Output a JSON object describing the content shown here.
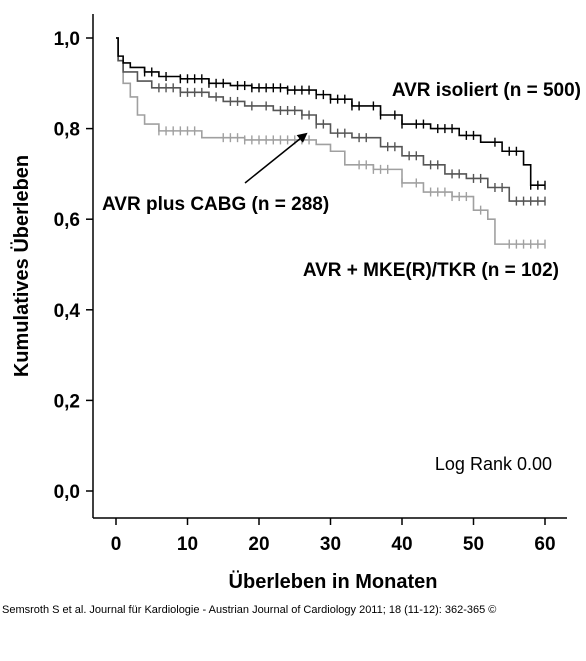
{
  "chart_data": {
    "type": "line",
    "xlabel": "Überleben in Monaten",
    "ylabel": "Kumulatives Überleben",
    "xlim": [
      0,
      63
    ],
    "ylim": [
      -0.05,
      1.05
    ],
    "x_ticks": [
      "0",
      "10",
      "20",
      "30",
      "40",
      "50",
      "60"
    ],
    "y_ticks": [
      "0,0",
      "0,2",
      "0,4",
      "0,6",
      "0,8",
      "1,0"
    ],
    "grid": false,
    "annotation": "Log Rank 0.00",
    "series": [
      {
        "name": "AVR isoliert (n = 500)",
        "color": "#000000",
        "steps": [
          [
            0,
            1.0
          ],
          [
            0.3,
            0.96
          ],
          [
            1,
            0.945
          ],
          [
            2,
            0.935
          ],
          [
            4,
            0.925
          ],
          [
            6,
            0.915
          ],
          [
            9,
            0.91
          ],
          [
            13,
            0.9
          ],
          [
            16,
            0.895
          ],
          [
            19,
            0.89
          ],
          [
            24,
            0.885
          ],
          [
            28,
            0.875
          ],
          [
            30,
            0.865
          ],
          [
            33,
            0.85
          ],
          [
            37,
            0.83
          ],
          [
            40,
            0.81
          ],
          [
            44,
            0.8
          ],
          [
            48,
            0.785
          ],
          [
            51,
            0.77
          ],
          [
            54,
            0.75
          ],
          [
            57,
            0.72
          ],
          [
            58,
            0.675
          ],
          [
            60,
            0.675
          ]
        ],
        "censor": [
          4,
          5,
          7,
          9,
          10,
          11,
          12,
          13,
          14,
          15,
          17,
          18,
          19,
          20,
          21,
          22,
          23,
          24,
          25,
          26,
          27,
          28,
          29,
          30,
          31,
          32,
          33,
          34,
          36,
          37,
          39,
          40,
          42,
          43,
          45,
          46,
          47,
          49,
          50,
          53,
          55,
          56,
          58,
          59,
          60
        ]
      },
      {
        "name": "AVR plus CABG (n = 288)",
        "color": "#555555",
        "steps": [
          [
            0,
            1.0
          ],
          [
            0.3,
            0.95
          ],
          [
            1,
            0.925
          ],
          [
            3,
            0.905
          ],
          [
            5,
            0.89
          ],
          [
            9,
            0.88
          ],
          [
            13,
            0.87
          ],
          [
            15,
            0.86
          ],
          [
            18,
            0.85
          ],
          [
            22,
            0.84
          ],
          [
            26,
            0.83
          ],
          [
            28,
            0.81
          ],
          [
            30,
            0.79
          ],
          [
            33,
            0.78
          ],
          [
            37,
            0.76
          ],
          [
            40,
            0.74
          ],
          [
            43,
            0.72
          ],
          [
            46,
            0.7
          ],
          [
            49,
            0.69
          ],
          [
            52,
            0.67
          ],
          [
            55,
            0.64
          ],
          [
            60,
            0.64
          ]
        ],
        "censor": [
          6,
          7,
          8,
          9,
          10,
          11,
          12,
          14,
          16,
          17,
          19,
          21,
          23,
          24,
          25,
          26,
          27,
          28,
          29,
          31,
          32,
          34,
          35,
          38,
          39,
          41,
          42,
          44,
          45,
          47,
          48,
          50,
          51,
          53,
          54,
          56,
          57,
          58,
          59,
          60
        ]
      },
      {
        "name": "AVR + MKE(R)/TKR (n = 102)",
        "color": "#a0a0a0",
        "steps": [
          [
            0,
            1.0
          ],
          [
            0.3,
            0.95
          ],
          [
            1,
            0.9
          ],
          [
            2,
            0.87
          ],
          [
            3,
            0.83
          ],
          [
            4,
            0.81
          ],
          [
            6,
            0.795
          ],
          [
            12,
            0.78
          ],
          [
            18,
            0.775
          ],
          [
            28,
            0.765
          ],
          [
            30,
            0.75
          ],
          [
            32,
            0.72
          ],
          [
            36,
            0.71
          ],
          [
            40,
            0.68
          ],
          [
            43,
            0.66
          ],
          [
            47,
            0.65
          ],
          [
            50,
            0.62
          ],
          [
            52,
            0.6
          ],
          [
            53,
            0.545
          ],
          [
            60,
            0.545
          ]
        ],
        "censor": [
          6,
          7,
          8,
          9,
          10,
          11,
          15,
          16,
          17,
          18,
          19,
          20,
          21,
          22,
          23,
          24,
          25,
          26,
          27,
          34,
          35,
          36,
          37,
          38,
          40,
          42,
          44,
          45,
          46,
          47,
          48,
          49,
          51,
          55,
          56,
          57,
          58,
          59,
          60
        ]
      }
    ],
    "series_labels": {
      "avr_isoliert": "AVR isoliert (n = 500)",
      "avr_cabg": "AVR plus CABG (n = 288)",
      "avr_mke": "AVR + MKE(R)/TKR (n = 102)"
    }
  },
  "citation": "Semsroth S et al. Journal für Kardiologie - Austrian Journal of Cardiology 2011; 18 (11-12): 362-365 ©"
}
